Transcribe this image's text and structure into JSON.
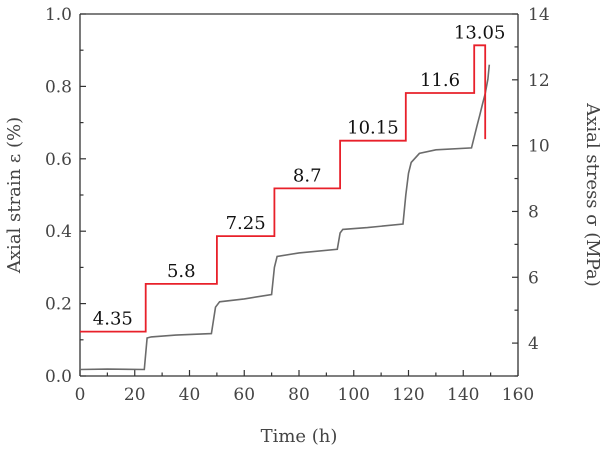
{
  "chart_data": {
    "type": "line",
    "xlabel": "Time (h)",
    "ylabel_left": "Axial strain ε (%)",
    "ylabel_right": "Axial stress σ (MPa)",
    "xlim": [
      0,
      160
    ],
    "ylim_left": [
      0.0,
      1.0
    ],
    "ylim_right": [
      3,
      14
    ],
    "x_ticks": [
      "0",
      "20",
      "40",
      "60",
      "80",
      "100",
      "120",
      "140",
      "160"
    ],
    "y_left_ticks": [
      "0.0",
      "0.2",
      "0.4",
      "0.6",
      "0.8",
      "1.0"
    ],
    "y_right_ticks": [
      "4",
      "6",
      "8",
      "10",
      "12",
      "14"
    ],
    "grid": false,
    "series": [
      {
        "axis": "right",
        "color": "#e8202a",
        "x": [
          0,
          24,
          24,
          50,
          50,
          71,
          71,
          95,
          95,
          119,
          119,
          144,
          144,
          148,
          148
        ],
        "y": [
          4.35,
          4.35,
          5.8,
          5.8,
          7.25,
          7.25,
          8.7,
          8.7,
          10.15,
          10.15,
          11.6,
          11.6,
          13.05,
          13.05,
          10.2
        ]
      },
      {
        "axis": "left",
        "color": "#6b6b6b",
        "x": [
          0,
          10,
          23.5,
          24.5,
          26,
          35,
          48,
          49.5,
          51,
          60,
          70,
          71,
          72,
          80,
          94,
          95,
          96,
          105,
          118,
          119,
          120,
          121,
          124,
          130,
          143,
          144,
          145,
          146,
          147,
          148,
          149,
          149.5
        ],
        "y": [
          0.018,
          0.019,
          0.018,
          0.105,
          0.108,
          0.113,
          0.117,
          0.19,
          0.205,
          0.213,
          0.225,
          0.3,
          0.33,
          0.34,
          0.35,
          0.395,
          0.405,
          0.41,
          0.42,
          0.5,
          0.56,
          0.59,
          0.615,
          0.625,
          0.63,
          0.66,
          0.69,
          0.72,
          0.75,
          0.78,
          0.82,
          0.86
        ]
      }
    ],
    "annotations": [
      "4.35",
      "5.8",
      "7.25",
      "8.7",
      "10.15",
      "11.6",
      "13.05"
    ]
  }
}
